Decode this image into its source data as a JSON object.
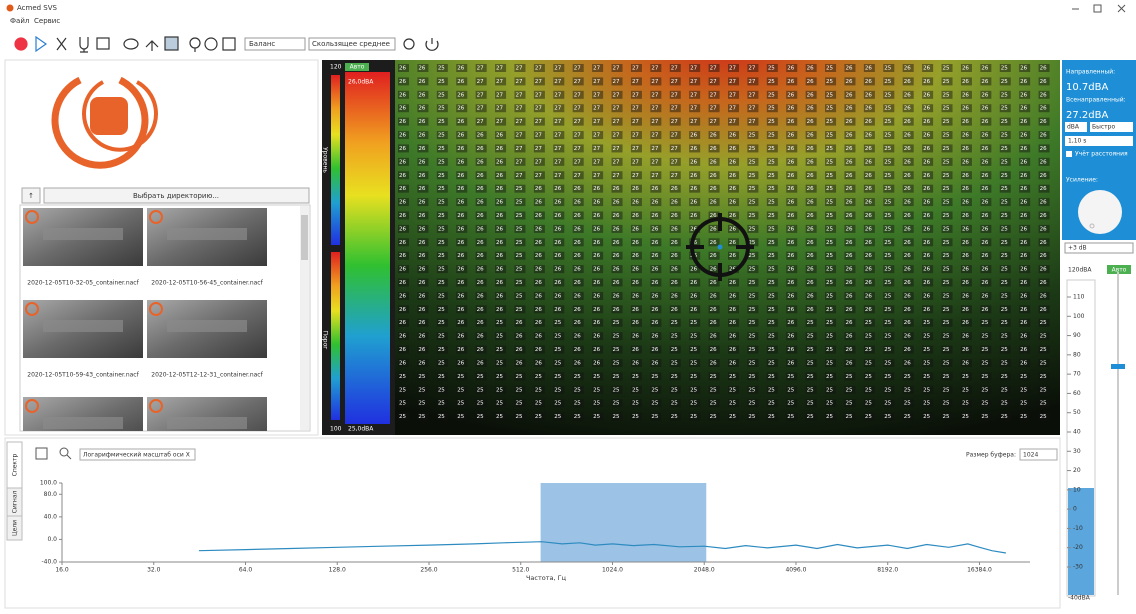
{
  "window": {
    "title": "Acmed SVS",
    "menu": [
      "Файл",
      "Сервис"
    ]
  },
  "toolbar": {
    "filter": "Баланс",
    "averaging": "Скользящее среднее"
  },
  "files": {
    "up": "↑",
    "choose_dir": "Выбрать директорию...",
    "items": [
      "2020-12-05T10-32-05_container.nacf",
      "2020-12-05T10-56-45_container.nacf",
      "2020-12-05T10-59-43_container.nacf",
      "2020-12-05T12-12-31_container.nacf"
    ]
  },
  "colorbar": {
    "max": "120",
    "auto": "Авто",
    "level_value": "26,0dBA",
    "level_label": "Уровень",
    "threshold_label": "Порог",
    "min": "100",
    "threshold_value": "25,0dBA"
  },
  "heatmap": {
    "rows": [
      [
        26,
        26,
        25,
        26,
        27,
        27,
        27,
        27,
        27,
        27,
        27,
        27,
        27,
        27,
        27,
        27,
        27,
        27,
        27,
        25,
        26,
        26,
        25,
        26,
        26,
        25,
        26,
        26,
        25,
        26,
        26,
        25,
        26,
        26
      ],
      [
        26,
        26,
        25,
        26,
        27,
        27,
        27,
        27,
        27,
        27,
        27,
        27,
        27,
        27,
        27,
        27,
        27,
        27,
        27,
        25,
        26,
        26,
        25,
        26,
        26,
        25,
        26,
        26,
        25,
        26,
        26,
        25,
        26,
        26
      ],
      [
        26,
        26,
        25,
        26,
        27,
        27,
        27,
        27,
        27,
        27,
        27,
        27,
        27,
        27,
        27,
        27,
        27,
        27,
        27,
        25,
        26,
        26,
        25,
        26,
        26,
        25,
        26,
        26,
        25,
        26,
        26,
        25,
        26,
        26
      ],
      [
        26,
        26,
        25,
        26,
        27,
        27,
        27,
        27,
        27,
        27,
        27,
        27,
        27,
        27,
        27,
        27,
        27,
        27,
        27,
        25,
        26,
        26,
        25,
        26,
        26,
        25,
        26,
        26,
        25,
        26,
        26,
        25,
        26,
        26
      ],
      [
        26,
        26,
        25,
        26,
        27,
        27,
        27,
        27,
        27,
        27,
        27,
        27,
        27,
        27,
        27,
        27,
        27,
        27,
        27,
        25,
        26,
        26,
        25,
        26,
        26,
        25,
        26,
        26,
        25,
        26,
        26,
        25,
        26,
        26
      ],
      [
        26,
        26,
        25,
        26,
        26,
        26,
        27,
        27,
        27,
        27,
        27,
        27,
        27,
        27,
        27,
        26,
        26,
        26,
        25,
        25,
        26,
        26,
        25,
        26,
        26,
        25,
        26,
        26,
        25,
        26,
        26,
        25,
        26,
        26
      ],
      [
        26,
        26,
        25,
        26,
        26,
        26,
        27,
        27,
        27,
        27,
        27,
        27,
        27,
        27,
        27,
        26,
        26,
        26,
        25,
        25,
        26,
        26,
        25,
        26,
        26,
        25,
        26,
        26,
        25,
        26,
        26,
        25,
        26,
        26
      ],
      [
        26,
        26,
        25,
        26,
        26,
        26,
        27,
        27,
        27,
        27,
        27,
        27,
        27,
        27,
        27,
        26,
        26,
        26,
        25,
        25,
        26,
        26,
        25,
        26,
        26,
        25,
        26,
        26,
        25,
        26,
        26,
        25,
        26,
        26
      ],
      [
        26,
        26,
        25,
        26,
        26,
        26,
        27,
        27,
        27,
        27,
        27,
        27,
        27,
        27,
        27,
        26,
        26,
        26,
        25,
        25,
        26,
        26,
        25,
        26,
        26,
        25,
        26,
        26,
        25,
        26,
        26,
        25,
        26,
        26
      ],
      [
        26,
        26,
        25,
        26,
        26,
        26,
        25,
        26,
        26,
        26,
        26,
        26,
        26,
        26,
        26,
        26,
        26,
        26,
        25,
        25,
        26,
        26,
        25,
        26,
        26,
        25,
        26,
        26,
        25,
        26,
        26,
        25,
        26,
        26
      ],
      [
        26,
        26,
        25,
        26,
        26,
        26,
        25,
        26,
        26,
        26,
        26,
        26,
        26,
        26,
        26,
        26,
        26,
        26,
        25,
        25,
        26,
        26,
        25,
        26,
        26,
        25,
        26,
        26,
        25,
        26,
        26,
        25,
        26,
        26
      ],
      [
        26,
        26,
        25,
        26,
        26,
        26,
        25,
        26,
        26,
        26,
        26,
        26,
        26,
        26,
        26,
        26,
        26,
        26,
        25,
        25,
        26,
        26,
        25,
        26,
        26,
        25,
        26,
        26,
        25,
        26,
        26,
        25,
        26,
        26
      ],
      [
        26,
        26,
        25,
        26,
        26,
        26,
        25,
        26,
        26,
        26,
        26,
        26,
        26,
        26,
        26,
        26,
        26,
        26,
        25,
        25,
        26,
        26,
        25,
        26,
        26,
        25,
        26,
        26,
        25,
        26,
        26,
        25,
        26,
        26
      ],
      [
        26,
        26,
        25,
        26,
        26,
        26,
        25,
        26,
        26,
        26,
        26,
        26,
        26,
        26,
        26,
        26,
        26,
        26,
        25,
        25,
        26,
        26,
        25,
        26,
        26,
        25,
        26,
        26,
        25,
        26,
        26,
        25,
        26,
        26
      ],
      [
        26,
        26,
        25,
        26,
        26,
        26,
        25,
        26,
        26,
        26,
        26,
        26,
        26,
        26,
        26,
        26,
        26,
        26,
        25,
        25,
        26,
        26,
        25,
        26,
        26,
        25,
        26,
        26,
        25,
        26,
        26,
        25,
        26,
        26
      ],
      [
        26,
        26,
        25,
        26,
        26,
        26,
        25,
        26,
        26,
        26,
        26,
        26,
        26,
        26,
        26,
        26,
        26,
        26,
        25,
        25,
        26,
        26,
        25,
        26,
        26,
        25,
        26,
        26,
        25,
        26,
        26,
        25,
        26,
        26
      ],
      [
        26,
        26,
        25,
        26,
        26,
        26,
        25,
        26,
        26,
        26,
        26,
        26,
        26,
        26,
        26,
        26,
        26,
        26,
        25,
        25,
        26,
        26,
        25,
        26,
        26,
        25,
        26,
        26,
        25,
        26,
        26,
        25,
        26,
        26
      ],
      [
        26,
        26,
        25,
        26,
        26,
        26,
        25,
        26,
        26,
        26,
        26,
        26,
        26,
        26,
        26,
        26,
        26,
        26,
        25,
        25,
        26,
        26,
        25,
        26,
        26,
        25,
        26,
        26,
        25,
        26,
        26,
        25,
        26,
        26
      ],
      [
        26,
        26,
        25,
        26,
        26,
        26,
        25,
        26,
        26,
        26,
        26,
        26,
        26,
        26,
        26,
        26,
        26,
        26,
        25,
        25,
        26,
        26,
        25,
        26,
        26,
        25,
        26,
        26,
        25,
        26,
        26,
        25,
        26,
        26
      ],
      [
        26,
        26,
        25,
        26,
        26,
        25,
        26,
        26,
        25,
        26,
        26,
        25,
        26,
        26,
        25,
        25,
        26,
        26,
        25,
        25,
        26,
        25,
        25,
        26,
        25,
        25,
        26,
        25,
        25,
        26,
        25,
        25,
        26,
        25
      ],
      [
        26,
        26,
        25,
        26,
        26,
        25,
        26,
        26,
        25,
        26,
        26,
        25,
        26,
        26,
        25,
        25,
        26,
        26,
        25,
        25,
        26,
        25,
        25,
        26,
        25,
        25,
        26,
        25,
        25,
        26,
        25,
        25,
        26,
        25
      ],
      [
        26,
        26,
        25,
        26,
        26,
        25,
        26,
        26,
        25,
        26,
        26,
        25,
        26,
        26,
        25,
        25,
        26,
        26,
        25,
        25,
        26,
        25,
        25,
        26,
        25,
        25,
        26,
        25,
        25,
        26,
        25,
        25,
        26,
        25
      ],
      [
        26,
        26,
        25,
        26,
        26,
        25,
        26,
        26,
        25,
        26,
        26,
        25,
        26,
        26,
        25,
        25,
        26,
        26,
        25,
        25,
        26,
        25,
        25,
        26,
        25,
        25,
        26,
        25,
        25,
        26,
        25,
        25,
        26,
        25
      ],
      [
        25,
        25,
        25,
        25,
        25,
        25,
        25,
        25,
        25,
        25,
        25,
        25,
        25,
        25,
        25,
        25,
        25,
        25,
        25,
        25,
        25,
        25,
        25,
        25,
        25,
        25,
        25,
        25,
        25,
        25,
        25,
        25,
        25,
        25
      ],
      [
        25,
        25,
        25,
        25,
        25,
        25,
        25,
        25,
        25,
        25,
        25,
        25,
        25,
        25,
        25,
        25,
        25,
        25,
        25,
        25,
        25,
        25,
        25,
        25,
        25,
        25,
        25,
        25,
        25,
        25,
        25,
        25,
        25,
        25
      ],
      [
        25,
        25,
        25,
        25,
        25,
        25,
        25,
        25,
        25,
        25,
        25,
        25,
        25,
        25,
        25,
        25,
        25,
        25,
        25,
        25,
        25,
        25,
        25,
        25,
        25,
        25,
        25,
        25,
        25,
        25,
        25,
        25,
        25,
        25
      ],
      [
        25,
        25,
        25,
        25,
        25,
        25,
        25,
        25,
        25,
        25,
        25,
        25,
        25,
        25,
        25,
        25,
        25,
        25,
        25,
        25,
        25,
        25,
        25,
        25,
        25,
        25,
        25,
        25,
        25,
        25,
        25,
        25,
        25,
        25
      ]
    ]
  },
  "side": {
    "directed_label": "Направленный:",
    "directed": "10.7dBA",
    "omni_label": "Всенаправленный:",
    "omni": "27.2dBA",
    "unit": "dBA",
    "speed": "Быстро",
    "distance": "1,10 s",
    "distance_check": "Учёт расстояния",
    "gain_label": "Усиление:",
    "gain": "+3 dB"
  },
  "meter": {
    "top": "120dBA",
    "auto": "Авто",
    "labels": [
      "110",
      "100",
      "90",
      "80",
      "70",
      "60",
      "50",
      "40",
      "30",
      "20",
      "10",
      "0",
      "-10",
      "-20",
      "-30"
    ],
    "bottom": "-40dBA"
  },
  "spectrum": {
    "tabs": [
      "Спектр",
      "Сигнал",
      "Цели"
    ],
    "scale_mode": "Логарифмический масштаб оси X",
    "buffer_label": "Размер буфера:",
    "buffer": "1024",
    "xlabel": "Частота, Гц",
    "xlim": [
      16,
      24000
    ],
    "ylim": [
      -40,
      100
    ],
    "xticks": [
      {
        "value": 16,
        "label": "16.0"
      },
      {
        "value": 32,
        "label": "32.0"
      },
      {
        "value": 64,
        "label": "64.0"
      },
      {
        "value": 128,
        "label": "128.0"
      },
      {
        "value": 256,
        "label": "256.0"
      },
      {
        "value": 512,
        "label": "512.0"
      },
      {
        "value": 1024,
        "label": "1024.0"
      },
      {
        "value": 2048,
        "label": "2048.0"
      },
      {
        "value": 4096,
        "label": "4096.0"
      },
      {
        "value": 8192,
        "label": "8192.0"
      },
      {
        "value": 16384,
        "label": "16384.0"
      }
    ],
    "yticks": [
      {
        "value": 100,
        "label": "100.0"
      },
      {
        "value": 80,
        "label": "80.0"
      },
      {
        "value": 40,
        "label": "40.0"
      },
      {
        "value": 0,
        "label": "0.0"
      },
      {
        "value": -40,
        "label": "-40.0"
      }
    ],
    "selection": [
      595,
      2080
    ],
    "x": [
      45,
      64,
      90,
      128,
      180,
      256,
      360,
      450,
      512,
      600,
      700,
      800,
      900,
      1024,
      1200,
      1400,
      1700,
      2048,
      2400,
      2800,
      3300,
      4096,
      4800,
      5600,
      6500,
      8192,
      9500,
      11000,
      13000,
      15000,
      16384,
      18000,
      20000
    ],
    "values": [
      -20,
      -18,
      -16,
      -14,
      -12,
      -10,
      -8,
      -6,
      -5,
      -4,
      -8,
      -6,
      -10,
      -8,
      -11,
      -9,
      -13,
      -12,
      -16,
      -11,
      -15,
      -10,
      -16,
      -9,
      -15,
      -10,
      -16,
      -9,
      -14,
      -8,
      -14,
      -20,
      -24
    ],
    "color": "#2e8bc0",
    "selection_color": "#9cc3e6"
  }
}
